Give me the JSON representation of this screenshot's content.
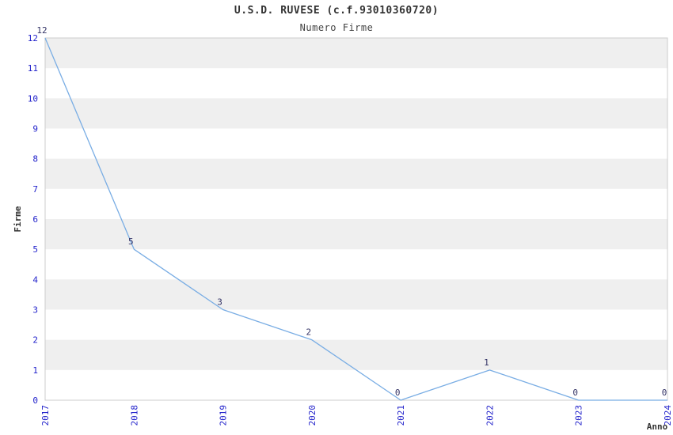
{
  "header": {
    "title": "U.S.D. RUVESE (c.f.93010360720)",
    "subtitle": "Numero Firme"
  },
  "chart_data": {
    "type": "line",
    "categories": [
      "2017",
      "2018",
      "2019",
      "2020",
      "2021",
      "2022",
      "2023",
      "2024"
    ],
    "series": [
      {
        "name": "Firme",
        "values": [
          12,
          5,
          3,
          2,
          0,
          1,
          0,
          0
        ]
      }
    ],
    "title": "U.S.D. RUVESE (c.f.93010360720)",
    "subtitle": "Numero Firme",
    "xlabel": "Anno",
    "ylabel": "Firme",
    "ylim": [
      0,
      12
    ],
    "y_ticks": [
      0,
      1,
      2,
      3,
      4,
      5,
      6,
      7,
      8,
      9,
      10,
      11,
      12
    ],
    "data_labels": [
      12,
      5,
      3,
      2,
      0,
      1,
      0,
      0
    ],
    "grid": "horizontal-stripes",
    "legend": "none",
    "colors": {
      "line": "#79ade4",
      "tick_label": "#2323cb",
      "data_label": "#333366",
      "stripe": "#efefef",
      "plot_border": "#cccccc",
      "axis_title": "#333333",
      "background": "#ffffff"
    }
  }
}
